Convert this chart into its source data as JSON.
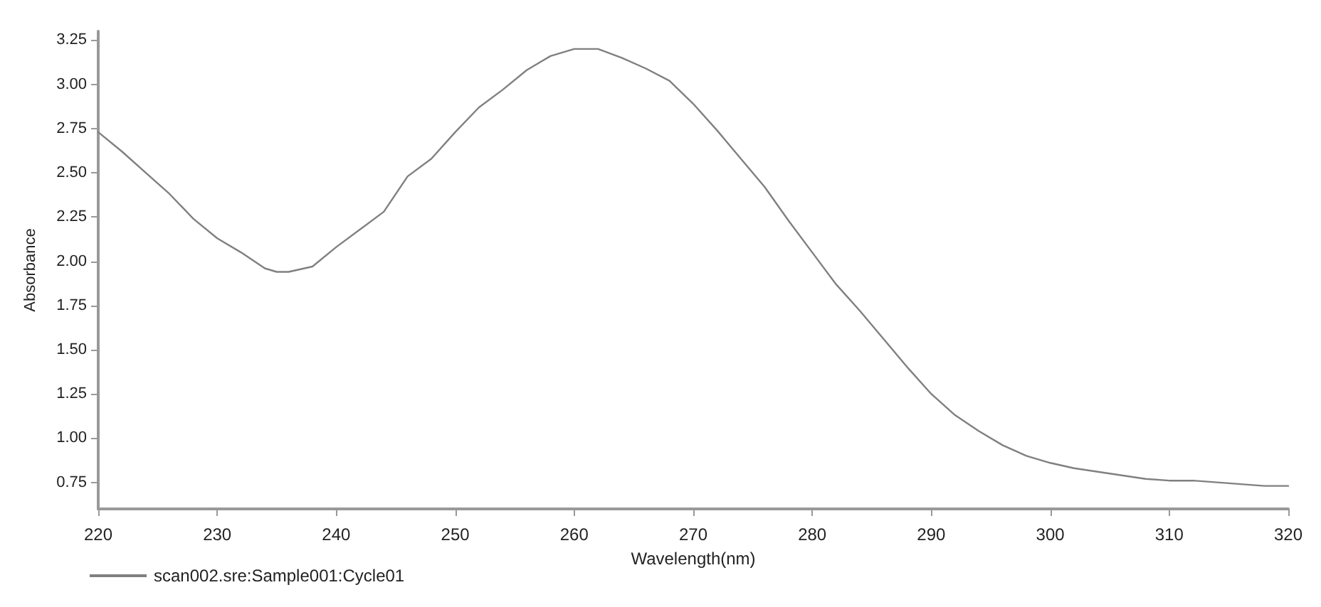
{
  "chart_data": {
    "type": "line",
    "xlabel": "Wavelength(nm)",
    "ylabel": "Absorbance",
    "xlim": [
      220,
      320
    ],
    "xticks": [
      220,
      230,
      240,
      250,
      260,
      270,
      280,
      290,
      300,
      310,
      320
    ],
    "ylim": [
      0.6,
      3.3
    ],
    "yticks": [
      {
        "value": 0.75,
        "label": "0.75"
      },
      {
        "value": 1,
        "label": "1.00"
      },
      {
        "value": 1.25,
        "label": "1.25"
      },
      {
        "value": 1.5,
        "label": "1.50"
      },
      {
        "value": 1.75,
        "label": "1.75"
      },
      {
        "value": 2,
        "label": "2.00"
      },
      {
        "value": 2.25,
        "label": "2.25"
      },
      {
        "value": 2.5,
        "label": "2.50"
      },
      {
        "value": 2.75,
        "label": "2.75"
      },
      {
        "value": 3,
        "label": "3.00"
      },
      {
        "value": 3.25,
        "label": "3.25"
      }
    ],
    "x": [
      220,
      222,
      224,
      226,
      228,
      230,
      232,
      234,
      235,
      236,
      238,
      240,
      242,
      244,
      246,
      248,
      250,
      252,
      254,
      256,
      258,
      260,
      262,
      264,
      266,
      268,
      270,
      272,
      274,
      276,
      278,
      280,
      282,
      284,
      286,
      288,
      290,
      292,
      294,
      296,
      298,
      300,
      302,
      304,
      306,
      308,
      310,
      312,
      314,
      316,
      318,
      320
    ],
    "series": [
      {
        "name": "scan002.sre:Sample001:Cycle01",
        "color": "#808080",
        "values": [
          2.73,
          2.62,
          2.5,
          2.38,
          2.24,
          2.13,
          2.05,
          1.96,
          1.94,
          1.94,
          1.97,
          2.08,
          2.18,
          2.28,
          2.48,
          2.58,
          2.73,
          2.87,
          2.97,
          3.08,
          3.16,
          3.2,
          3.2,
          3.15,
          3.09,
          3.02,
          2.89,
          2.74,
          2.58,
          2.42,
          2.23,
          2.05,
          1.87,
          1.72,
          1.56,
          1.4,
          1.25,
          1.13,
          1.04,
          0.96,
          0.9,
          0.86,
          0.83,
          0.81,
          0.79,
          0.77,
          0.76,
          0.76,
          0.75,
          0.74,
          0.73,
          0.73
        ]
      }
    ],
    "grid": false,
    "legend": "bottom left",
    "marker": "none",
    "line_style": "solid"
  }
}
